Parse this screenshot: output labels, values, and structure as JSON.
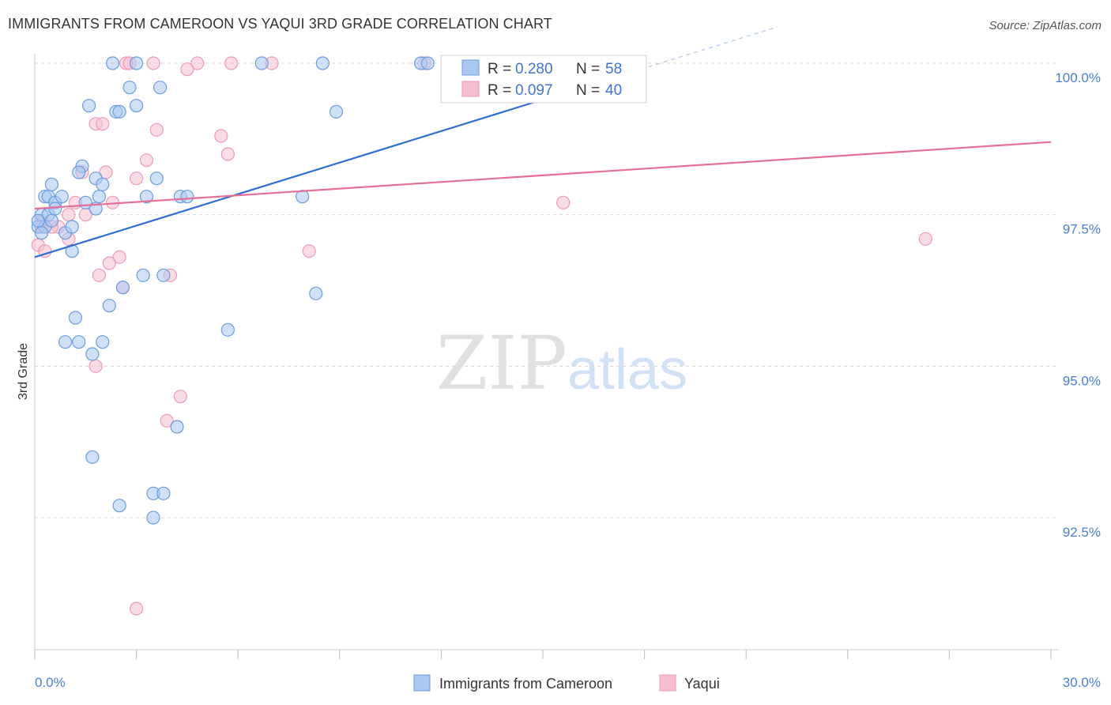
{
  "title": "IMMIGRANTS FROM CAMEROON VS YAQUI 3RD GRADE CORRELATION CHART",
  "source": "Source: ZipAtlas.com",
  "watermark": {
    "zip": "ZIP",
    "atlas": "atlas"
  },
  "colors": {
    "blue_fill": "#a9c8f0",
    "blue_stroke": "#6a9be0",
    "blue_line": "#2f6fd0",
    "pink_fill": "#f6bfd0",
    "pink_stroke": "#ee9ab5",
    "pink_line": "#e46f98",
    "grid": "#d8d8d8",
    "tick_label": "#4a7fd4"
  },
  "legend": {
    "rows": [
      {
        "r_label": "R = ",
        "r_value": "0.280",
        "n_label": "N = ",
        "n_value": "58"
      },
      {
        "r_label": "R = ",
        "r_value": "0.097",
        "n_label": "N = ",
        "n_value": "40"
      }
    ]
  },
  "bottom_legend": [
    "Immigrants from Cameroon",
    "Yaqui"
  ],
  "chart_data": {
    "type": "scatter",
    "title": "IMMIGRANTS FROM CAMEROON VS YAQUI 3RD GRADE CORRELATION CHART",
    "xlabel": "",
    "ylabel": "3rd Grade",
    "xlim": [
      0,
      30
    ],
    "ylim": [
      90.0,
      100.2
    ],
    "x_tick_labels": [
      "0.0%",
      "30.0%"
    ],
    "y_ticks": [
      92.5,
      95.0,
      97.5,
      100.0
    ],
    "y_tick_labels": [
      "92.5%",
      "95.0%",
      "97.5%",
      "100.0%"
    ],
    "series": [
      {
        "name": "Immigrants from Cameroon",
        "R": 0.28,
        "N": 58,
        "trend": {
          "x": [
            0,
            15.0
          ],
          "y": [
            96.8,
            99.4
          ]
        },
        "points": [
          [
            2.3,
            100.0
          ],
          [
            3.0,
            100.0
          ],
          [
            6.7,
            100.0
          ],
          [
            8.5,
            100.0
          ],
          [
            11.4,
            100.0
          ],
          [
            11.6,
            100.0
          ],
          [
            2.8,
            99.6
          ],
          [
            3.7,
            99.6
          ],
          [
            1.6,
            99.3
          ],
          [
            3.0,
            99.3
          ],
          [
            2.4,
            99.2
          ],
          [
            2.5,
            99.2
          ],
          [
            8.9,
            99.2
          ],
          [
            1.4,
            98.3
          ],
          [
            1.3,
            98.2
          ],
          [
            0.5,
            98.0
          ],
          [
            1.8,
            98.1
          ],
          [
            2.0,
            98.0
          ],
          [
            3.6,
            98.1
          ],
          [
            0.3,
            97.8
          ],
          [
            0.4,
            97.8
          ],
          [
            0.6,
            97.7
          ],
          [
            0.8,
            97.8
          ],
          [
            1.5,
            97.7
          ],
          [
            1.9,
            97.8
          ],
          [
            3.3,
            97.8
          ],
          [
            4.3,
            97.8
          ],
          [
            4.5,
            97.8
          ],
          [
            7.9,
            97.8
          ],
          [
            1.8,
            97.6
          ],
          [
            0.2,
            97.5
          ],
          [
            0.4,
            97.5
          ],
          [
            0.6,
            97.6
          ],
          [
            0.1,
            97.3
          ],
          [
            0.3,
            97.3
          ],
          [
            0.9,
            97.2
          ],
          [
            1.1,
            97.3
          ],
          [
            0.2,
            97.2
          ],
          [
            1.1,
            96.9
          ],
          [
            3.2,
            96.5
          ],
          [
            3.8,
            96.5
          ],
          [
            8.3,
            96.2
          ],
          [
            2.6,
            96.3
          ],
          [
            2.2,
            96.0
          ],
          [
            1.2,
            95.8
          ],
          [
            5.7,
            95.6
          ],
          [
            0.9,
            95.4
          ],
          [
            1.3,
            95.4
          ],
          [
            2.0,
            95.4
          ],
          [
            1.7,
            95.2
          ],
          [
            4.2,
            94.0
          ],
          [
            1.7,
            93.5
          ],
          [
            3.5,
            92.9
          ],
          [
            3.8,
            92.9
          ],
          [
            2.5,
            92.7
          ],
          [
            3.5,
            92.5
          ],
          [
            0.1,
            97.4
          ],
          [
            0.5,
            97.4
          ]
        ]
      },
      {
        "name": "Yaqui",
        "R": 0.097,
        "N": 40,
        "trend": {
          "x": [
            0,
            30.0
          ],
          "y": [
            97.6,
            98.7
          ]
        },
        "points": [
          [
            2.7,
            100.0
          ],
          [
            2.8,
            100.0
          ],
          [
            3.5,
            100.0
          ],
          [
            4.8,
            100.0
          ],
          [
            5.8,
            100.0
          ],
          [
            7.0,
            100.0
          ],
          [
            11.5,
            100.0
          ],
          [
            4.5,
            99.9
          ],
          [
            1.8,
            99.0
          ],
          [
            2.0,
            99.0
          ],
          [
            3.6,
            98.9
          ],
          [
            5.5,
            98.8
          ],
          [
            5.7,
            98.5
          ],
          [
            3.3,
            98.4
          ],
          [
            1.4,
            98.2
          ],
          [
            2.1,
            98.2
          ],
          [
            3.0,
            98.1
          ],
          [
            1.2,
            97.7
          ],
          [
            2.3,
            97.7
          ],
          [
            15.6,
            97.7
          ],
          [
            1.0,
            97.5
          ],
          [
            1.5,
            97.5
          ],
          [
            0.7,
            97.3
          ],
          [
            0.2,
            97.4
          ],
          [
            1.0,
            97.1
          ],
          [
            26.3,
            97.1
          ],
          [
            0.1,
            97.0
          ],
          [
            8.1,
            96.9
          ],
          [
            0.3,
            96.9
          ],
          [
            2.5,
            96.8
          ],
          [
            2.2,
            96.7
          ],
          [
            1.9,
            96.5
          ],
          [
            4.0,
            96.5
          ],
          [
            2.6,
            96.3
          ],
          [
            1.8,
            95.0
          ],
          [
            4.3,
            94.5
          ],
          [
            3.9,
            94.1
          ],
          [
            3.0,
            91.0
          ],
          [
            0.2,
            97.3
          ],
          [
            0.5,
            97.3
          ]
        ]
      }
    ]
  }
}
